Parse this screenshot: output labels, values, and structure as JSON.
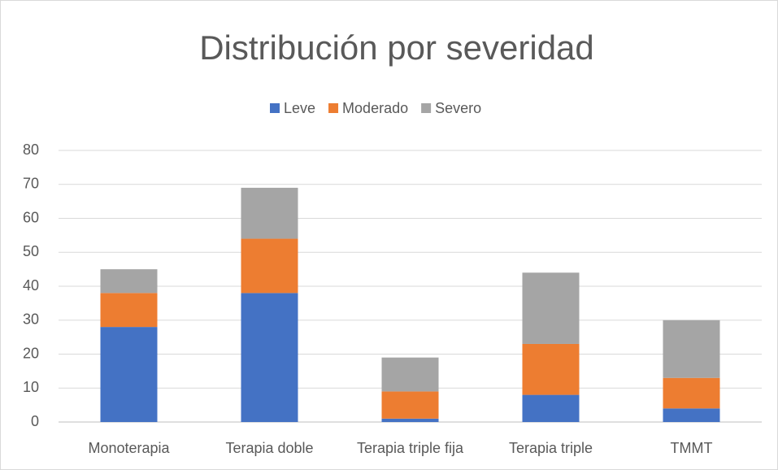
{
  "chart_data": {
    "type": "stacked_bar",
    "title": "Distribución por severidad",
    "categories": [
      "Monoterapia",
      "Terapia doble",
      "Terapia triple fija",
      "Terapia triple",
      "TMMT"
    ],
    "series": [
      {
        "name": "Leve",
        "color": "#4472c4",
        "values": [
          28,
          38,
          1,
          8,
          4
        ]
      },
      {
        "name": "Moderado",
        "color": "#ed7d31",
        "values": [
          10,
          16,
          8,
          15,
          9
        ]
      },
      {
        "name": "Severo",
        "color": "#a5a5a5",
        "values": [
          7,
          15,
          10,
          21,
          17
        ]
      }
    ],
    "ylim": [
      0,
      80
    ],
    "yticks": [
      0,
      10,
      20,
      30,
      40,
      50,
      60,
      70,
      80
    ],
    "grid": true,
    "legend": "top"
  }
}
